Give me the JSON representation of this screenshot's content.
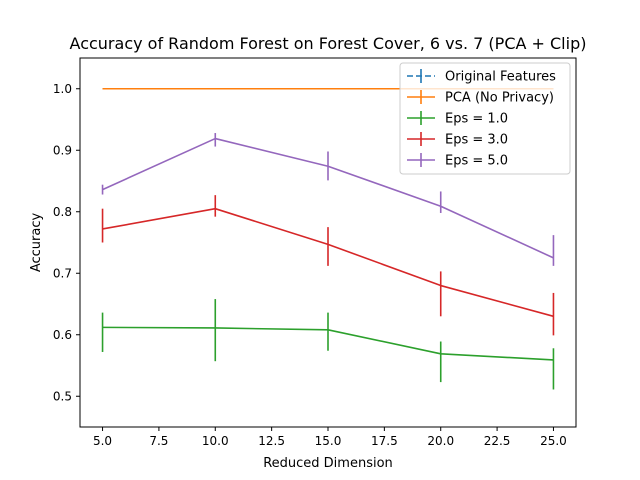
{
  "chart_data": {
    "type": "line",
    "title": "Accuracy of Random Forest on Forest Cover, 6 vs. 7 (PCA + Clip)",
    "xlabel": "Reduced Dimension",
    "ylabel": "Accuracy",
    "xlim": [
      4,
      26
    ],
    "ylim": [
      0.45,
      1.05
    ],
    "xticks": [
      5.0,
      7.5,
      10.0,
      12.5,
      15.0,
      17.5,
      20.0,
      22.5,
      25.0
    ],
    "xtick_labels": [
      "5.0",
      "7.5",
      "10.0",
      "12.5",
      "15.0",
      "17.5",
      "20.0",
      "22.5",
      "25.0"
    ],
    "yticks": [
      0.5,
      0.6,
      0.7,
      0.8,
      0.9,
      1.0
    ],
    "ytick_labels": [
      "0.5",
      "0.6",
      "0.7",
      "0.8",
      "0.9",
      "1.0"
    ],
    "grid": false,
    "legend_position": "top-right",
    "series": [
      {
        "name": "Original Features",
        "color": "#1f77b4",
        "dashed": true,
        "x": [
          5,
          10,
          15,
          20,
          25
        ],
        "y": [
          1.0,
          1.0,
          1.0,
          1.0,
          1.0
        ],
        "err_low": [
          1.0,
          1.0,
          1.0,
          1.0,
          1.0
        ],
        "err_high": [
          1.0,
          1.0,
          1.0,
          1.0,
          1.0
        ]
      },
      {
        "name": "PCA (No Privacy)",
        "color": "#ff7f0e",
        "dashed": false,
        "x": [
          5,
          10,
          15,
          20,
          25
        ],
        "y": [
          1.0,
          1.0,
          1.0,
          1.0,
          1.0
        ],
        "err_low": [
          1.0,
          1.0,
          1.0,
          1.0,
          1.0
        ],
        "err_high": [
          1.0,
          1.0,
          1.0,
          1.0,
          1.0
        ]
      },
      {
        "name": "Eps = 1.0",
        "color": "#2ca02c",
        "dashed": false,
        "x": [
          5,
          10,
          15,
          20,
          25
        ],
        "y": [
          0.612,
          0.611,
          0.608,
          0.569,
          0.559
        ],
        "err_low": [
          0.572,
          0.557,
          0.574,
          0.523,
          0.511
        ],
        "err_high": [
          0.636,
          0.658,
          0.636,
          0.589,
          0.578
        ]
      },
      {
        "name": "Eps = 3.0",
        "color": "#d62728",
        "dashed": false,
        "x": [
          5,
          10,
          15,
          20,
          25
        ],
        "y": [
          0.772,
          0.805,
          0.747,
          0.68,
          0.63
        ],
        "err_low": [
          0.75,
          0.792,
          0.712,
          0.63,
          0.599
        ],
        "err_high": [
          0.805,
          0.827,
          0.775,
          0.703,
          0.668
        ]
      },
      {
        "name": "Eps = 5.0",
        "color": "#9467bd",
        "dashed": false,
        "x": [
          5,
          10,
          15,
          20,
          25
        ],
        "y": [
          0.836,
          0.919,
          0.874,
          0.809,
          0.725
        ],
        "err_low": [
          0.828,
          0.906,
          0.851,
          0.798,
          0.712
        ],
        "err_high": [
          0.844,
          0.928,
          0.898,
          0.833,
          0.762
        ]
      }
    ]
  }
}
